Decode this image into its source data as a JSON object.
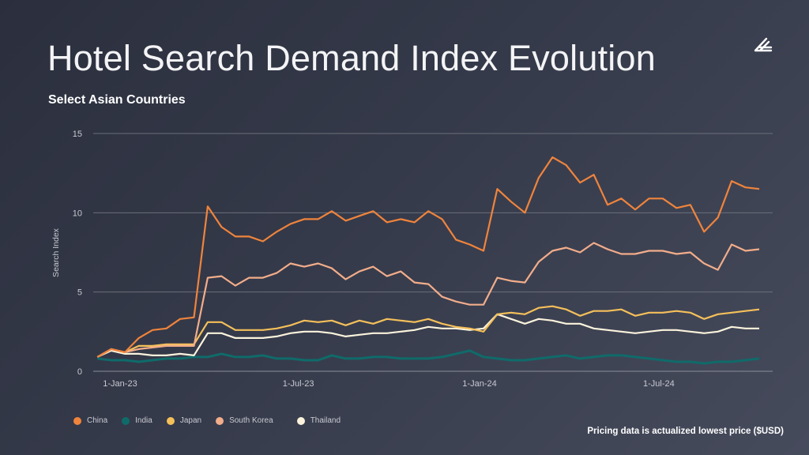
{
  "header": {
    "title": "Hotel Search Demand Index Evolution",
    "subtitle": "Select Asian Countries",
    "logo_icon": "double-slash-arrow-logo"
  },
  "footer": {
    "note": "Pricing data is actualized lowest price ($USD)"
  },
  "chart_data": {
    "type": "line",
    "title": "",
    "xlabel": "",
    "ylabel": "Search Index",
    "ylim": [
      0,
      15
    ],
    "yticks": [
      "0",
      "5",
      "10",
      "15"
    ],
    "xticks": [
      {
        "date": "2023-01-01",
        "label": "1-Jan-23"
      },
      {
        "date": "2023-07-01",
        "label": "1-Jul-23"
      },
      {
        "date": "2024-01-01",
        "label": "1-Jan-24"
      },
      {
        "date": "2024-07-01",
        "label": "1-Jul-24"
      }
    ],
    "grid": "horizontal",
    "legend": "bottom-left",
    "x": [
      "2022-12-09",
      "2022-12-23",
      "2023-01-06",
      "2023-01-20",
      "2023-02-03",
      "2023-02-17",
      "2023-03-03",
      "2023-03-17",
      "2023-03-31",
      "2023-04-14",
      "2023-04-28",
      "2023-05-12",
      "2023-05-26",
      "2023-06-09",
      "2023-06-23",
      "2023-07-07",
      "2023-07-21",
      "2023-08-04",
      "2023-08-18",
      "2023-09-01",
      "2023-09-15",
      "2023-09-29",
      "2023-10-13",
      "2023-10-27",
      "2023-11-10",
      "2023-11-24",
      "2023-12-08",
      "2023-12-22",
      "2024-01-05",
      "2024-01-19",
      "2024-02-02",
      "2024-02-16",
      "2024-03-01",
      "2024-03-15",
      "2024-03-29",
      "2024-04-12",
      "2024-04-26",
      "2024-05-10",
      "2024-05-24",
      "2024-06-07",
      "2024-06-21",
      "2024-07-05",
      "2024-07-19",
      "2024-08-02",
      "2024-08-16",
      "2024-08-30",
      "2024-09-13",
      "2024-09-27",
      "2024-10-11"
    ],
    "series": [
      {
        "name": "China",
        "color": "#f0843c",
        "values": [
          0.9,
          1.4,
          1.2,
          2.1,
          2.6,
          2.7,
          3.3,
          3.4,
          10.4,
          9.1,
          8.5,
          8.5,
          8.2,
          8.8,
          9.3,
          9.6,
          9.6,
          10.1,
          9.5,
          9.8,
          10.1,
          9.4,
          9.6,
          9.4,
          10.1,
          9.6,
          8.3,
          8.0,
          7.6,
          11.5,
          10.7,
          10.0,
          12.2,
          13.5,
          13.0,
          11.9,
          12.4,
          10.5,
          10.9,
          10.2,
          10.9,
          10.9,
          10.3,
          10.5,
          8.8,
          9.7,
          12.0,
          11.6,
          11.5
        ]
      },
      {
        "name": "India",
        "color": "#0f6b6a",
        "values": [
          0.8,
          0.7,
          0.7,
          0.6,
          0.7,
          0.8,
          0.8,
          0.9,
          0.9,
          1.1,
          0.9,
          0.9,
          1.0,
          0.8,
          0.8,
          0.7,
          0.7,
          1.0,
          0.8,
          0.8,
          0.9,
          0.9,
          0.8,
          0.8,
          0.8,
          0.9,
          1.1,
          1.3,
          0.9,
          0.8,
          0.7,
          0.7,
          0.8,
          0.9,
          1.0,
          0.8,
          0.9,
          1.0,
          1.0,
          0.9,
          0.8,
          0.7,
          0.6,
          0.6,
          0.5,
          0.6,
          0.6,
          0.7,
          0.8
        ]
      },
      {
        "name": "Japan",
        "color": "#f5c05a",
        "values": [
          0.9,
          1.4,
          1.2,
          1.6,
          1.6,
          1.7,
          1.7,
          1.7,
          3.1,
          3.1,
          2.6,
          2.6,
          2.6,
          2.7,
          2.9,
          3.2,
          3.1,
          3.2,
          2.9,
          3.2,
          3.0,
          3.3,
          3.2,
          3.1,
          3.3,
          3.0,
          2.8,
          2.7,
          2.5,
          3.6,
          3.7,
          3.6,
          4.0,
          4.1,
          3.9,
          3.5,
          3.8,
          3.8,
          3.9,
          3.5,
          3.7,
          3.7,
          3.8,
          3.7,
          3.3,
          3.6,
          3.7,
          3.8,
          3.9
        ]
      },
      {
        "name": "South Korea",
        "color": "#f2ad8a",
        "values": [
          0.9,
          1.4,
          1.2,
          1.4,
          1.5,
          1.6,
          1.6,
          1.6,
          5.9,
          6.0,
          5.4,
          5.9,
          5.9,
          6.2,
          6.8,
          6.6,
          6.8,
          6.5,
          5.8,
          6.3,
          6.6,
          6.0,
          6.3,
          5.6,
          5.5,
          4.7,
          4.4,
          4.2,
          4.2,
          5.9,
          5.7,
          5.6,
          6.9,
          7.6,
          7.8,
          7.5,
          8.1,
          7.7,
          7.4,
          7.4,
          7.6,
          7.6,
          7.4,
          7.5,
          6.8,
          6.4,
          8.0,
          7.6,
          7.7
        ]
      },
      {
        "name": "Thailand",
        "color": "#fbf3dc",
        "values": [
          0.9,
          1.3,
          1.1,
          1.1,
          1.0,
          1.0,
          1.1,
          1.0,
          2.4,
          2.4,
          2.1,
          2.1,
          2.1,
          2.2,
          2.4,
          2.5,
          2.5,
          2.4,
          2.2,
          2.3,
          2.4,
          2.4,
          2.5,
          2.6,
          2.8,
          2.7,
          2.7,
          2.6,
          2.7,
          3.6,
          3.3,
          3.0,
          3.3,
          3.2,
          3.0,
          3.0,
          2.7,
          2.6,
          2.5,
          2.4,
          2.5,
          2.6,
          2.6,
          2.5,
          2.4,
          2.5,
          2.8,
          2.7,
          2.7
        ]
      }
    ]
  }
}
